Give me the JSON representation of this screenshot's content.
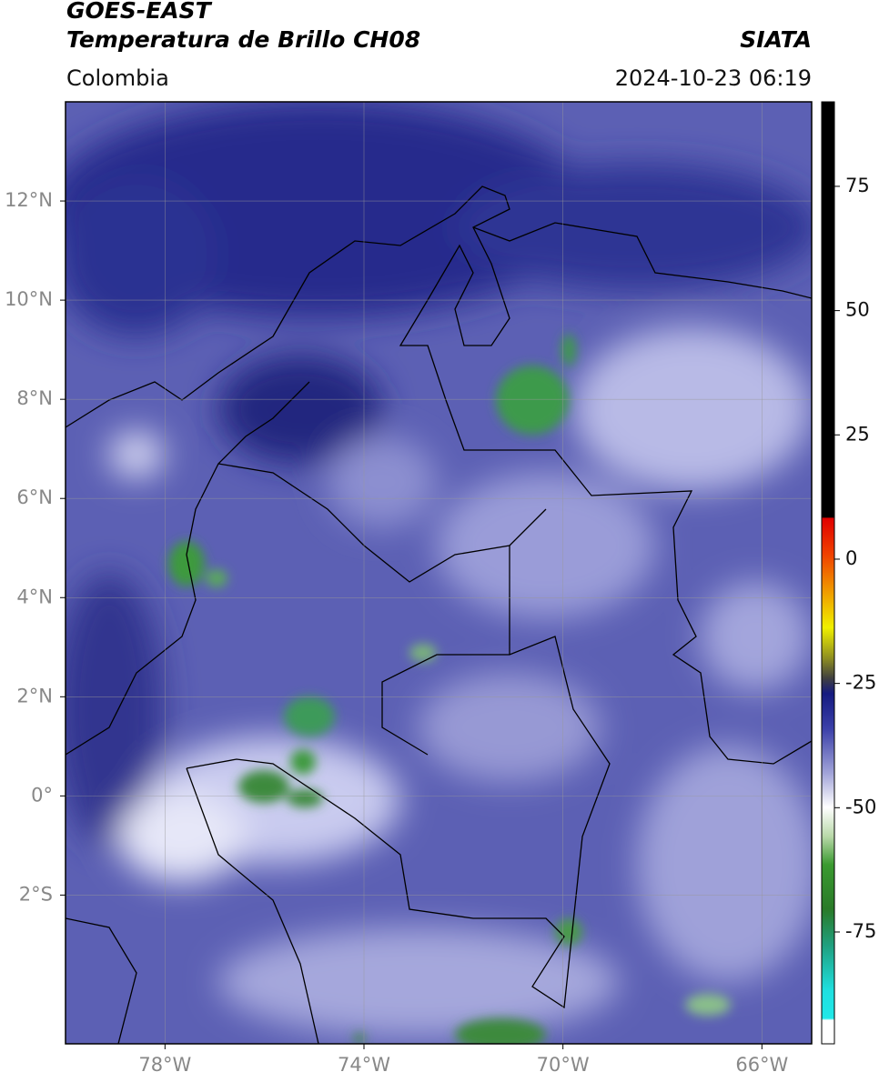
{
  "header": {
    "line1": "GOES-EAST",
    "line2": "Temperatura de Brillo CH08",
    "region": "Colombia",
    "agency": "SIATA",
    "datetime": "2024-10-23 06:19"
  },
  "map": {
    "xlim": [
      -80,
      -65
    ],
    "ylim": [
      -5,
      14
    ],
    "xticks": [
      {
        "value": -78,
        "label": "78°W"
      },
      {
        "value": -74,
        "label": "74°W"
      },
      {
        "value": -70,
        "label": "70°W"
      },
      {
        "value": -66,
        "label": "66°W"
      }
    ],
    "yticks": [
      {
        "value": 12,
        "label": "12°N"
      },
      {
        "value": 10,
        "label": "10°N"
      },
      {
        "value": 8,
        "label": "8°N"
      },
      {
        "value": 6,
        "label": "6°N"
      },
      {
        "value": 4,
        "label": "4°N"
      },
      {
        "value": 2,
        "label": "2°N"
      },
      {
        "value": 0,
        "label": "0°"
      },
      {
        "value": -2,
        "label": "2°S"
      }
    ]
  },
  "colorbar": {
    "lim": [
      -97.5,
      92
    ],
    "ticks": [
      75,
      50,
      25,
      0,
      -25,
      -50,
      -75
    ]
  }
}
